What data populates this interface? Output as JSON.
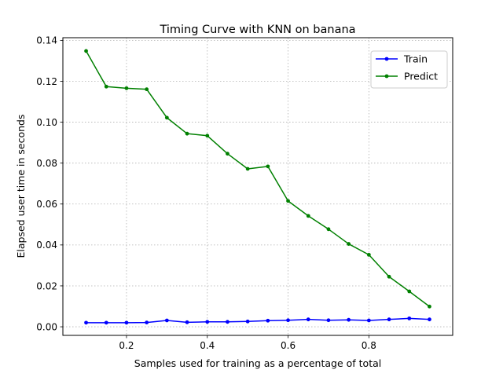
{
  "chart_data": {
    "type": "line",
    "title": "Timing Curve with KNN on banana",
    "xlabel": "Samples used for training as a percentage of total",
    "ylabel": "Elapsed user time in seconds",
    "xlim": [
      0.0425,
      1.0075
    ],
    "ylim": [
      -0.0042,
      0.1413
    ],
    "xticks": [
      0.2,
      0.4,
      0.6,
      0.8
    ],
    "xtick_labels": [
      "0.2",
      "0.4",
      "0.6",
      "0.8"
    ],
    "yticks": [
      0.0,
      0.02,
      0.04,
      0.06,
      0.08,
      0.1,
      0.12,
      0.14
    ],
    "ytick_labels": [
      "0.00",
      "0.02",
      "0.04",
      "0.06",
      "0.08",
      "0.10",
      "0.12",
      "0.14"
    ],
    "grid": true,
    "legend_position": "upper-right",
    "x": [
      0.1,
      0.15,
      0.2,
      0.25,
      0.3,
      0.35,
      0.4,
      0.45,
      0.5,
      0.55,
      0.6,
      0.65,
      0.7,
      0.75,
      0.8,
      0.85,
      0.9,
      0.95
    ],
    "series": [
      {
        "name": "Train",
        "color": "#0000ff",
        "values": [
          0.002,
          0.002,
          0.002,
          0.0021,
          0.0031,
          0.0022,
          0.0024,
          0.0024,
          0.0026,
          0.003,
          0.0032,
          0.0036,
          0.0032,
          0.0034,
          0.0031,
          0.0036,
          0.0041,
          0.0036
        ]
      },
      {
        "name": "Predict",
        "color": "#008000",
        "values": [
          0.1348,
          0.1174,
          0.1166,
          0.1161,
          0.1022,
          0.0944,
          0.0934,
          0.0846,
          0.0772,
          0.0784,
          0.0615,
          0.0542,
          0.0477,
          0.0405,
          0.0352,
          0.0245,
          0.0173,
          0.0099
        ]
      }
    ]
  }
}
